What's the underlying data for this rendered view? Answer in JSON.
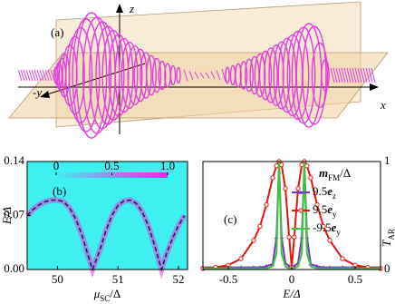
{
  "panel_a": {
    "label": "(a)",
    "axis_labels": {
      "z": "z",
      "y": "-y",
      "x": "x"
    }
  },
  "chart_data": [
    {
      "type": "line",
      "panel_label": "(b)",
      "ylabel": "E/Δ",
      "xlabel": [
        "μ",
        "SC",
        "/Δ"
      ],
      "x": [
        49.5,
        49.6,
        49.7,
        49.8,
        49.9,
        50.0,
        50.1,
        50.2,
        50.3,
        50.4,
        50.5,
        50.58,
        50.7,
        50.8,
        50.9,
        51.0,
        51.1,
        51.2,
        51.3,
        51.4,
        51.5,
        51.6,
        51.72,
        51.8,
        51.9,
        52.0,
        52.1
      ],
      "series": [
        {
          "color": "#e03be0",
          "values": [
            0.07,
            0.078,
            0.084,
            0.088,
            0.09,
            0.09,
            0.088,
            0.08,
            0.066,
            0.046,
            0.02,
            0,
            0.025,
            0.05,
            0.07,
            0.083,
            0.089,
            0.09,
            0.086,
            0.075,
            0.057,
            0.033,
            0,
            0.02,
            0.04,
            0.057,
            0.07
          ]
        }
      ],
      "xlim": [
        49.5,
        52.15
      ],
      "ylim": [
        0,
        0.14
      ],
      "xticks": [
        50,
        51,
        52
      ],
      "yticks": [
        {
          "value": 0,
          "label": "0.00"
        },
        0.07,
        0.14
      ],
      "background": "#40f0f0",
      "line_style": "dashed",
      "colorbar": {
        "ticks": [
          0,
          0.5,
          {
            "value": 1,
            "label": "1.0"
          }
        ],
        "colors": [
          "#40f0f0",
          "#ff1fe8"
        ]
      }
    },
    {
      "type": "line",
      "panel_label": "(c)",
      "xlabel": "E/Δ",
      "y2label": [
        "T",
        "AR"
      ],
      "legend_title": [
        "m",
        "FM",
        "/Δ"
      ],
      "x": [
        -0.7,
        -0.6,
        -0.5,
        -0.4,
        -0.3,
        -0.25,
        -0.2,
        -0.15,
        -0.12,
        -0.1,
        -0.08,
        -0.05,
        -0.02,
        0,
        0.02,
        0.05,
        0.08,
        0.1,
        0.12,
        0.15,
        0.2,
        0.25,
        0.3,
        0.4,
        0.5,
        0.6,
        0.7
      ],
      "series": [
        {
          "name": [
            "9.5",
            "e",
            "z"
          ],
          "color": "#7b35c8",
          "marker": "triangle",
          "axis": "y2",
          "values": [
            0.02,
            0.02,
            0.02,
            0.02,
            0.02,
            0.02,
            0.03,
            0.05,
            0.3,
            0.98,
            0.3,
            0.06,
            0.03,
            0.03,
            0.03,
            0.06,
            0.3,
            0.98,
            0.3,
            0.05,
            0.03,
            0.02,
            0.02,
            0.02,
            0.02,
            0.02,
            0.02
          ]
        },
        {
          "name": [
            "9.5",
            "e",
            "y"
          ],
          "color": "#e8140c",
          "marker": "circle",
          "axis": "y2",
          "values": [
            0.01,
            0.02,
            0.04,
            0.1,
            0.27,
            0.4,
            0.6,
            0.85,
            0.96,
            1,
            0.97,
            0.75,
            0.3,
            0.02,
            0.3,
            0.75,
            0.97,
            1,
            0.96,
            0.85,
            0.6,
            0.4,
            0.27,
            0.1,
            0.04,
            0.02,
            0.01
          ]
        },
        {
          "name": [
            "-9.5",
            "e",
            "y"
          ],
          "color": "#3cc43c",
          "marker": "none",
          "axis": "y2",
          "values": [
            0.01,
            0.01,
            0.01,
            0.01,
            0.01,
            0.01,
            0.01,
            0.03,
            0.15,
            1,
            0.15,
            0.03,
            0.01,
            0.01,
            0.01,
            0.03,
            0.15,
            1,
            0.15,
            0.03,
            0.01,
            0.01,
            0.01,
            0.01,
            0.01,
            0.01,
            0.01
          ]
        }
      ],
      "xlim": [
        -0.7,
        0.7
      ],
      "y2lim": [
        0,
        1
      ],
      "y2ticks": [
        0,
        1
      ],
      "xticks": [
        -0.5,
        0,
        0.5
      ]
    }
  ]
}
